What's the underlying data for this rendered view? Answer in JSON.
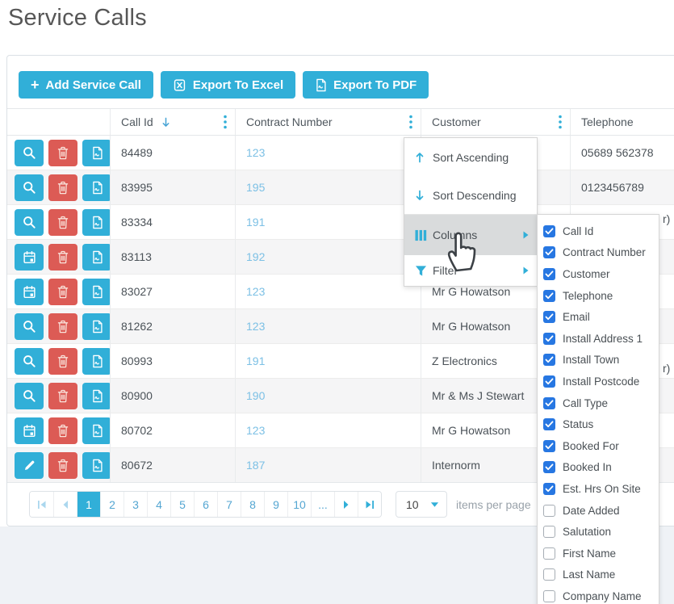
{
  "title": "Service Calls",
  "toolbar": {
    "add_button": "Add Service Call",
    "excel_button": "Export To Excel",
    "pdf_button": "Export To PDF"
  },
  "grid": {
    "headers": {
      "call_id": "Call Id",
      "contract_number": "Contract Number",
      "customer": "Customer",
      "telephone": "Telephone"
    },
    "sort": {
      "column": "Call Id",
      "direction": "descending"
    },
    "rows": [
      {
        "action_icon": "search",
        "call_id": "84489",
        "contract_number": "123",
        "customer": "",
        "telephone": "05689 562378",
        "telephone_overflow": ""
      },
      {
        "action_icon": "search",
        "call_id": "83995",
        "contract_number": "195",
        "customer": "",
        "telephone": "0123456789",
        "telephone_overflow": ""
      },
      {
        "action_icon": "search",
        "call_id": "83334",
        "contract_number": "191",
        "customer": "",
        "telephone": "",
        "telephone_overflow": "r)"
      },
      {
        "action_icon": "calendar",
        "call_id": "83113",
        "contract_number": "192",
        "customer": "",
        "telephone": "",
        "telephone_overflow": ""
      },
      {
        "action_icon": "calendar",
        "call_id": "83027",
        "contract_number": "123",
        "customer": "Mr G Howatson",
        "telephone": "",
        "telephone_overflow": ""
      },
      {
        "action_icon": "search",
        "call_id": "81262",
        "contract_number": "123",
        "customer": "Mr G Howatson",
        "telephone": "",
        "telephone_overflow": ""
      },
      {
        "action_icon": "search",
        "call_id": "80993",
        "contract_number": "191",
        "customer": "Z Electronics",
        "telephone": "",
        "telephone_overflow": "r)"
      },
      {
        "action_icon": "search",
        "call_id": "80900",
        "contract_number": "190",
        "customer": "Mr & Ms J Stewart",
        "telephone": "",
        "telephone_overflow": ""
      },
      {
        "action_icon": "calendar",
        "call_id": "80702",
        "contract_number": "123",
        "customer": "Mr G Howatson",
        "telephone": "",
        "telephone_overflow": ""
      },
      {
        "action_icon": "pencil",
        "call_id": "80672",
        "contract_number": "187",
        "customer": "Internorm",
        "telephone": "",
        "telephone_overflow": ""
      }
    ]
  },
  "context_menu": {
    "items": [
      {
        "icon": "sort-ascending-icon",
        "label": "Sort Ascending",
        "submenu": false,
        "highlighted": false
      },
      {
        "icon": "sort-descending-icon",
        "label": "Sort Descending",
        "submenu": false,
        "highlighted": false
      },
      {
        "icon": "columns-icon",
        "label": "Columns",
        "submenu": true,
        "highlighted": true
      },
      {
        "icon": "filter-icon",
        "label": "Filter",
        "submenu": true,
        "highlighted": false
      }
    ]
  },
  "columns_menu": {
    "items": [
      {
        "label": "Call Id",
        "checked": true
      },
      {
        "label": "Contract Number",
        "checked": true
      },
      {
        "label": "Customer",
        "checked": true
      },
      {
        "label": "Telephone",
        "checked": true
      },
      {
        "label": "Email",
        "checked": true
      },
      {
        "label": "Install Address 1",
        "checked": true
      },
      {
        "label": "Install Town",
        "checked": true
      },
      {
        "label": "Install Postcode",
        "checked": true
      },
      {
        "label": "Call Type",
        "checked": true
      },
      {
        "label": "Status",
        "checked": true
      },
      {
        "label": "Booked For",
        "checked": true
      },
      {
        "label": "Booked In",
        "checked": true
      },
      {
        "label": "Est. Hrs On Site",
        "checked": true
      },
      {
        "label": "Date Added",
        "checked": false
      },
      {
        "label": "Salutation",
        "checked": false
      },
      {
        "label": "First Name",
        "checked": false
      },
      {
        "label": "Last Name",
        "checked": false
      },
      {
        "label": "Company Name",
        "checked": false
      }
    ]
  },
  "pager": {
    "pages": [
      "1",
      "2",
      "3",
      "4",
      "5",
      "6",
      "7",
      "8",
      "9",
      "10"
    ],
    "active_page": "1",
    "ellipsis": "...",
    "page_size": "10",
    "items_per_page_label": "items per page"
  },
  "colors": {
    "accent": "#31afd8",
    "danger": "#dc5b55",
    "link": "#7cc0e5",
    "checkbox_blue": "#2777e2",
    "menu_highlight": "#d9dbdc",
    "page_background": "#eff2f6"
  }
}
